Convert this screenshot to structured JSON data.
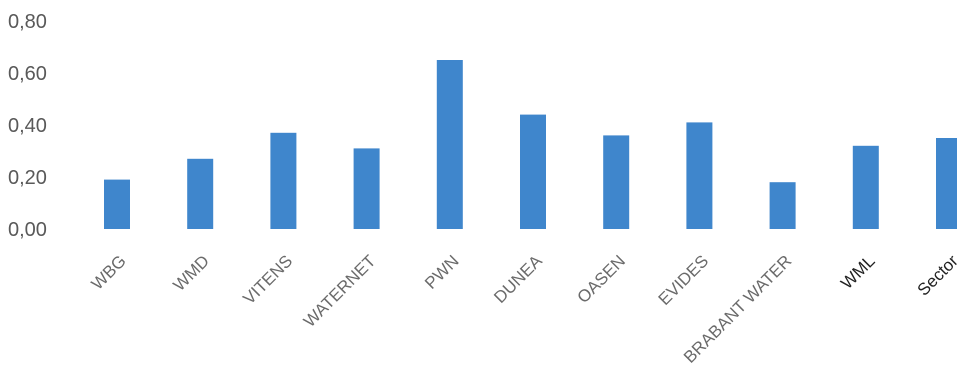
{
  "chart_data": {
    "type": "bar",
    "categories": [
      "WBG",
      "WMD",
      "VITENS",
      "WATERNET",
      "PWN",
      "DUNEA",
      "OASEN",
      "EVIDES",
      "BRABANT WATER",
      "WML",
      "Sector"
    ],
    "values": [
      0.19,
      0.27,
      0.37,
      0.31,
      0.65,
      0.44,
      0.36,
      0.41,
      0.18,
      0.32,
      0.35
    ],
    "title": "",
    "xlabel": "",
    "ylabel": "",
    "ylim": [
      0,
      0.8
    ],
    "yticks": [
      "0,00",
      "0,20",
      "0,40",
      "0,60",
      "0,80"
    ],
    "grid": false,
    "legend": "none",
    "colors": {
      "bar": "#3f86cc",
      "tick_text": "#595959",
      "category_text": "#6a6a6a",
      "category_text_bold": "#222222"
    }
  }
}
